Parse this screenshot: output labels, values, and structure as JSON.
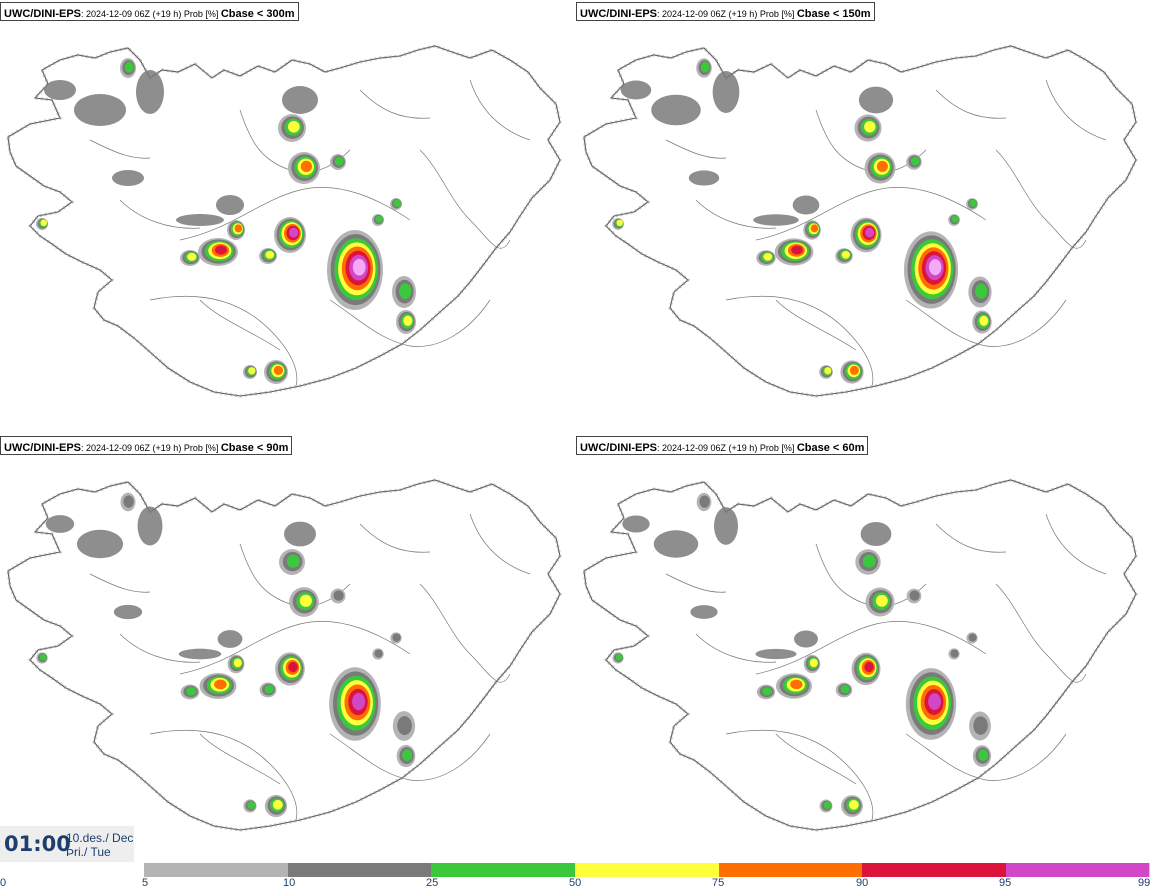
{
  "panels": [
    {
      "model": "UWC/DINI-EPS",
      "meta": ": 2024-12-09 06Z (+19 h) Prob [%] ",
      "field": "Cbase < 300m",
      "scale": 1.0
    },
    {
      "model": "UWC/DINI-EPS",
      "meta": ": 2024-12-09 06Z (+19 h) Prob [%] ",
      "field": "Cbase < 150m",
      "scale": 0.88
    },
    {
      "model": "UWC/DINI-EPS",
      "meta": ": 2024-12-09 06Z (+19 h) Prob [%] ",
      "field": "Cbase < 90m",
      "scale": 0.72
    },
    {
      "model": "UWC/DINI-EPS",
      "meta": ": 2024-12-09 06Z (+19 h) Prob [%] ",
      "field": "Cbase < 60m",
      "scale": 0.64
    }
  ],
  "valid_time": {
    "clock": "01:00",
    "date_line_1": "10.des./ Dec",
    "date_line_2": "Þri./ Tue"
  },
  "legend": {
    "ticks": [
      "0",
      "5",
      "10",
      "25",
      "50",
      "75",
      "90",
      "95",
      "99"
    ],
    "segments": [
      {
        "from": 5,
        "to": 10,
        "color": "#b4b4b4"
      },
      {
        "from": 10,
        "to": 25,
        "color": "#7a7a7a"
      },
      {
        "from": 25,
        "to": 50,
        "color": "#3cc83c"
      },
      {
        "from": 50,
        "to": 75,
        "color": "#ffff3c"
      },
      {
        "from": 75,
        "to": 90,
        "color": "#ff6e00"
      },
      {
        "from": 90,
        "to": 95,
        "color": "#dc143c"
      },
      {
        "from": 95,
        "to": 99,
        "color": "#d246c8"
      },
      {
        "from": 99,
        "to": 100,
        "color": "#f5aaf5"
      }
    ]
  },
  "colors": {
    "coastline": "#555555",
    "level_5": "#b4b4b4",
    "level_10": "#7a7a7a",
    "level_25": "#3cc83c",
    "level_50": "#ffff3c",
    "level_75": "#ff6e00",
    "level_90": "#dc143c",
    "level_95": "#d246c8",
    "level_99": "#f5aaf5"
  }
}
